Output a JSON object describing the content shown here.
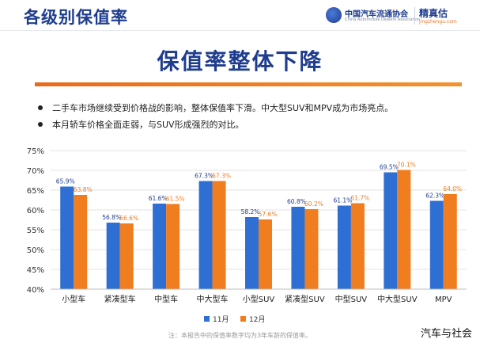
{
  "header": {
    "title": "各级别保值率",
    "logo_text": "中国汽车流通协会",
    "logo_sub": "China Automobile Dealers Association",
    "brand": "精真估",
    "brand_sub": "jingzhengu.com"
  },
  "main_title": "保值率整体下降",
  "bullets": [
    "二手车市场继续受到价格战的影响，整体保值率下滑。中大型SUV和MPV成为市场亮点。",
    "本月轿车价格全面走弱，与SUV形成强烈的对比。"
  ],
  "footnote": "注：本报告中的保值率数字均为3年车龄的保值率。",
  "watermark": "汽车与社会",
  "colors": {
    "series1": "#2f6fd3",
    "series2": "#f07d1f",
    "title": "#1f3d8f",
    "accent": "#e96a1a"
  },
  "chart_data": {
    "type": "bar",
    "categories": [
      "小型车",
      "紧凑型车",
      "中型车",
      "中大型车",
      "小型SUV",
      "紧凑型SUV",
      "中型SUV",
      "中大型SUV",
      "MPV"
    ],
    "series": [
      {
        "name": "11月",
        "values": [
          65.9,
          56.8,
          61.6,
          67.3,
          58.2,
          60.8,
          61.1,
          69.5,
          62.3
        ],
        "labels": [
          "65.9%",
          "56.8%",
          "61.6%",
          "67.3%",
          "58.2%",
          "60.8%",
          "61.1%",
          "69.5%",
          "62.3%"
        ]
      },
      {
        "name": "12月",
        "values": [
          63.8,
          56.6,
          61.5,
          67.3,
          57.6,
          60.2,
          61.7,
          70.1,
          64.0
        ],
        "labels": [
          "63.8%",
          "56.6%",
          "61.5%",
          "67.3%",
          "57.6%",
          "60.2%",
          "61.7%",
          "70.1%",
          "64.0%"
        ]
      }
    ],
    "ylim": [
      40,
      75
    ],
    "yticks": [
      40,
      45,
      50,
      55,
      60,
      65,
      70,
      75
    ],
    "ytick_labels": [
      "40%",
      "45%",
      "50%",
      "55%",
      "60%",
      "65%",
      "70%",
      "75%"
    ],
    "grid": true,
    "legend_position": "bottom"
  }
}
